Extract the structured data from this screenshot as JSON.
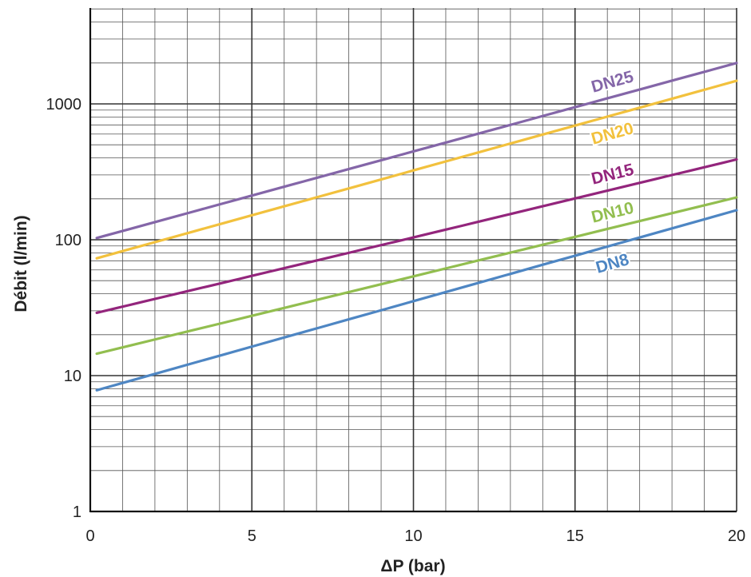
{
  "chart_data": {
    "type": "line",
    "xlabel": "ΔP (bar)",
    "ylabel": "Débit (l/min)",
    "xlim": [
      0,
      20
    ],
    "ylim": [
      1,
      5000
    ],
    "yscale": "log",
    "grid": true,
    "x_ticks": [
      "0",
      "5",
      "10",
      "15",
      "20"
    ],
    "y_ticks": [
      "1",
      "10",
      "100",
      "1000"
    ],
    "series": [
      {
        "name": "DN25",
        "color": "#8466a8",
        "x": [
          0.2,
          20
        ],
        "y": [
          103,
          2000
        ]
      },
      {
        "name": "DN20",
        "color": "#f2c13d",
        "x": [
          0.2,
          20
        ],
        "y": [
          73,
          1480
        ]
      },
      {
        "name": "DN15",
        "color": "#93257c",
        "x": [
          0.2,
          10,
          20
        ],
        "y": [
          29,
          104,
          390
        ]
      },
      {
        "name": "DN10",
        "color": "#92be4f",
        "x": [
          0.2,
          20
        ],
        "y": [
          14.5,
          205
        ]
      },
      {
        "name": "DN8",
        "color": "#4e86c3",
        "x": [
          0.2,
          20
        ],
        "y": [
          7.8,
          165
        ]
      }
    ]
  }
}
